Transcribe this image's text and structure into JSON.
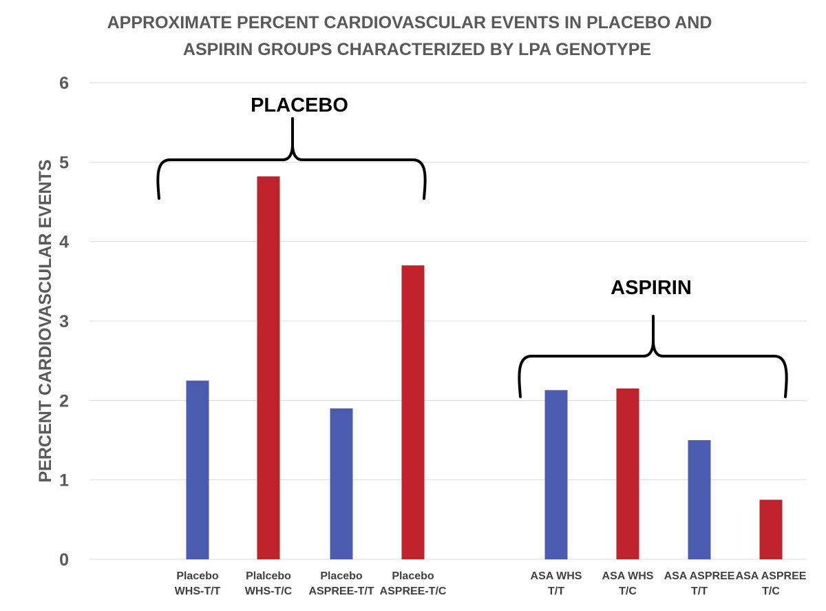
{
  "chart_data": {
    "type": "bar",
    "title_lines": [
      "APPROXIMATE PERCENT CARDIOVASCULAR EVENTS IN PLACEBO AND",
      "ASPIRIN GROUPS CHARACTERIZED BY LPA GENOTYPE"
    ],
    "ylabel": "PERCENT CARDIOVASCULAR EVENTS",
    "xlabel": "",
    "ylim": [
      0,
      6
    ],
    "yticks": [
      "0",
      "1",
      "2",
      "3",
      "4",
      "5",
      "6"
    ],
    "grid": true,
    "categories": [
      [
        "Placebo",
        "WHS-T/T"
      ],
      [
        "Plalcebo",
        "WHS-T/C"
      ],
      [
        "Placebo",
        "ASPREE-T/T"
      ],
      [
        "Placebo",
        "ASPREE-T/C"
      ],
      [
        "ASA WHS",
        "T/T"
      ],
      [
        "ASA WHS",
        "T/C"
      ],
      [
        "ASA ASPREE",
        "T/T"
      ],
      [
        "ASA ASPREE",
        "T/C"
      ]
    ],
    "values": [
      2.25,
      4.82,
      1.9,
      3.7,
      2.13,
      2.15,
      1.5,
      0.75
    ],
    "bar_colors": [
      "#4a5bb0",
      "#c0222b",
      "#4a5bb0",
      "#c0222b",
      "#4a5bb0",
      "#c0222b",
      "#4a5bb0",
      "#c0222b"
    ],
    "annotations": [
      {
        "label": "PLACEBO",
        "spans": [
          0,
          3
        ]
      },
      {
        "label": "ASPIRIN",
        "spans": [
          4,
          7
        ]
      }
    ]
  }
}
